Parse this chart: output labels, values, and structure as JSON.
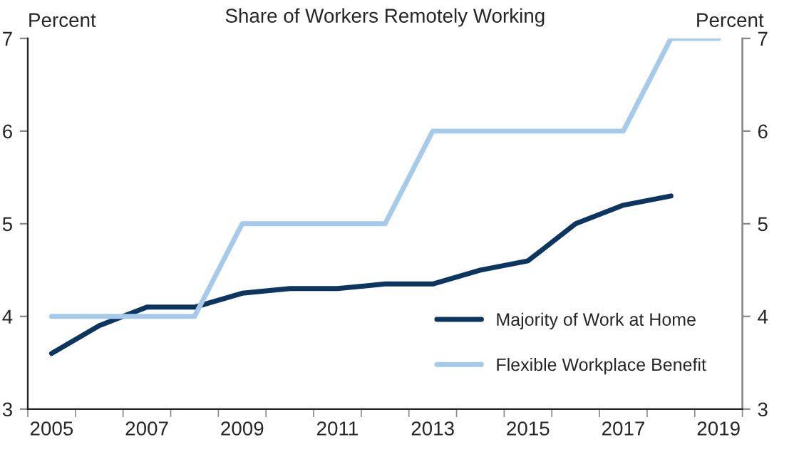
{
  "chart_data": {
    "type": "line",
    "title": "Share of Workers Remotely Working",
    "ylabel": "Percent",
    "y2label": "Percent",
    "categories": [
      "2005",
      null,
      "2007",
      null,
      "2009",
      null,
      "2011",
      null,
      "2013",
      null,
      "2015",
      null,
      "2017",
      null,
      "2019"
    ],
    "series": [
      {
        "name": "Majority of Work at Home",
        "color": "#0c3560",
        "values": [
          3.6,
          3.9,
          4.1,
          4.1,
          4.25,
          4.3,
          4.3,
          4.35,
          4.35,
          4.5,
          4.6,
          5.0,
          5.2,
          5.3,
          null
        ]
      },
      {
        "name": "Flexible Workplace Benefit",
        "color": "#a6cbea",
        "values": [
          4,
          4,
          4,
          4,
          5,
          5,
          5,
          5,
          6,
          6,
          6,
          6,
          6,
          7,
          7
        ]
      }
    ],
    "ylim": [
      3,
      7
    ],
    "yticks": [
      3,
      4,
      5,
      6,
      7
    ],
    "y2lim": [
      3,
      7
    ],
    "y2ticks": [
      3,
      4,
      5,
      6,
      7
    ],
    "grid": false,
    "legend": "bottom right",
    "marker": "none",
    "line_style": "solid"
  }
}
